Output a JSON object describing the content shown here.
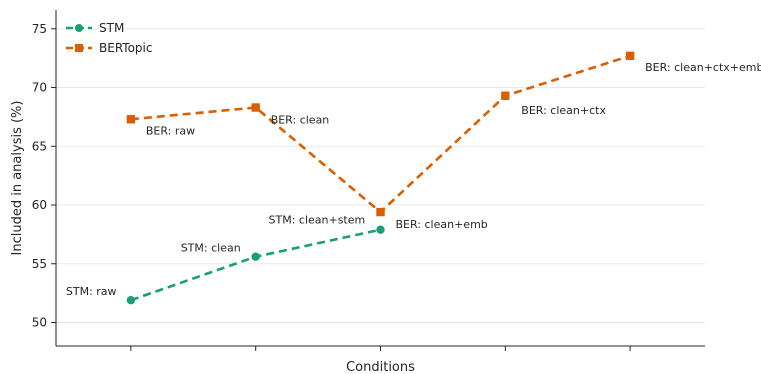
{
  "chart_data": {
    "type": "line",
    "title": "",
    "xlabel": "Conditions",
    "ylabel": "Included in analysis (%)",
    "x": [
      0,
      1,
      2,
      3,
      4
    ],
    "xlim": [
      -0.6,
      4.6
    ],
    "ylim": [
      48,
      76.6
    ],
    "yticks": [
      50,
      55,
      60,
      65,
      70,
      75
    ],
    "grid": "horizontal",
    "legend_position": "top-left",
    "series": [
      {
        "name": "STM",
        "color": "#1a9e77",
        "marker": "circle",
        "linestyle": "dashed",
        "x": [
          0,
          1,
          2
        ],
        "values": [
          51.9,
          55.6,
          57.9
        ],
        "labels": [
          "STM: raw",
          "STM: clean",
          "STM: clean+stem"
        ]
      },
      {
        "name": "BERTopic",
        "color": "#d95f02",
        "marker": "square",
        "linestyle": "dashed",
        "x": [
          0,
          1,
          2,
          3,
          4
        ],
        "values": [
          67.3,
          68.3,
          59.4,
          69.3,
          72.7
        ],
        "labels": [
          "BER: raw",
          "BER: clean",
          "BER: clean+emb",
          "BER: clean+ctx",
          "BER: clean+ctx+emb"
        ]
      }
    ]
  }
}
